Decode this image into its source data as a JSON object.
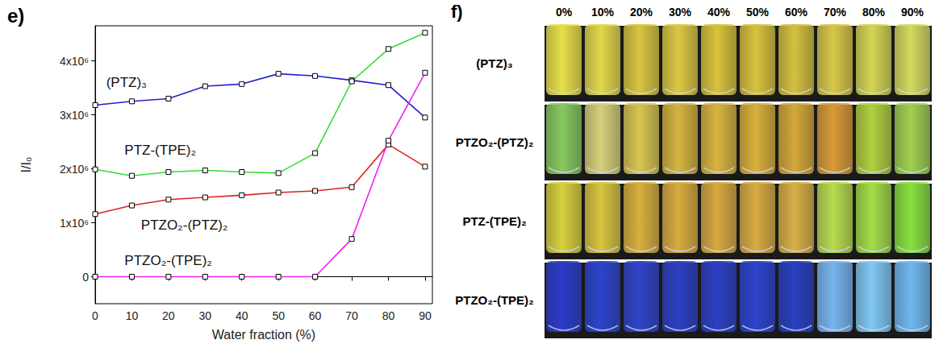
{
  "chart_data": {
    "type": "line",
    "title": "e)",
    "x_label": "Water fraction (%)",
    "y_label": "I/I₀",
    "x": [
      0,
      10,
      20,
      30,
      40,
      50,
      60,
      70,
      80,
      90
    ],
    "xlim": [
      0,
      92
    ],
    "xticks": [
      0,
      10,
      20,
      30,
      40,
      50,
      60,
      70,
      80,
      90
    ],
    "ylim": [
      -500000,
      4650000
    ],
    "yticks": [
      0,
      {
        "value": 1000000,
        "label": "1x10⁶"
      },
      {
        "value": 2000000,
        "label": "2x10⁶"
      },
      {
        "value": 3000000,
        "label": "3x10⁶"
      },
      {
        "value": 4000000,
        "label": "4x10⁶"
      }
    ],
    "grid": false,
    "marker": "square",
    "series": [
      {
        "name": "(PTZ)₃",
        "color": "#2222cc",
        "values": [
          3180000,
          3250000,
          3300000,
          3530000,
          3570000,
          3760000,
          3720000,
          3640000,
          3550000,
          2950000
        ]
      },
      {
        "name": "PTZ-(TPE)₂",
        "color": "#33dd33",
        "values": [
          1990000,
          1870000,
          1940000,
          1970000,
          1940000,
          1920000,
          2290000,
          3620000,
          4220000,
          4520000
        ]
      },
      {
        "name": "PTZO₂-(PTZ)₂",
        "color": "#dd2222",
        "values": [
          1160000,
          1320000,
          1430000,
          1470000,
          1510000,
          1560000,
          1590000,
          1660000,
          2450000,
          2040000
        ]
      },
      {
        "name": "PTZO₂-(TPE)₂",
        "color": "#ee22ee",
        "values": [
          0,
          0,
          0,
          0,
          0,
          0,
          0,
          700000,
          2520000,
          3780000
        ]
      }
    ]
  },
  "photo_panel": {
    "label": "f)",
    "columns": [
      "0%",
      "10%",
      "20%",
      "30%",
      "40%",
      "50%",
      "60%",
      "70%",
      "80%",
      "90%"
    ],
    "rows": [
      {
        "label": "(PTZ)₃",
        "colors": [
          "#e8e04a",
          "#e3d84a",
          "#d8c640",
          "#dcc844",
          "#d8c43c",
          "#d8c23e",
          "#d4c040",
          "#d8c848",
          "#d4d454",
          "#d4da60"
        ]
      },
      {
        "label": "PTZO₂-(PTZ)₂",
        "colors": [
          "#88c860",
          "#d6d07a",
          "#d8c650",
          "#d4b440",
          "#d8b440",
          "#d8b03c",
          "#d4a83a",
          "#d89a38",
          "#b0d040",
          "#a0d050"
        ]
      },
      {
        "label": "PTZ-(TPE)₂",
        "colors": [
          "#d8d040",
          "#d8c440",
          "#d8b040",
          "#d8ac40",
          "#d8a840",
          "#d8ac44",
          "#d8b048",
          "#b8dc50",
          "#a4dc48",
          "#88e040"
        ]
      },
      {
        "label": "PTZO₂-(TPE)₂",
        "colors": [
          "#2c3cc8",
          "#2c44cc",
          "#3044c8",
          "#2c40c4",
          "#2c40c4",
          "#2c44cc",
          "#2840c0",
          "#78b4f0",
          "#80c8f4",
          "#70b8f0"
        ]
      }
    ]
  }
}
